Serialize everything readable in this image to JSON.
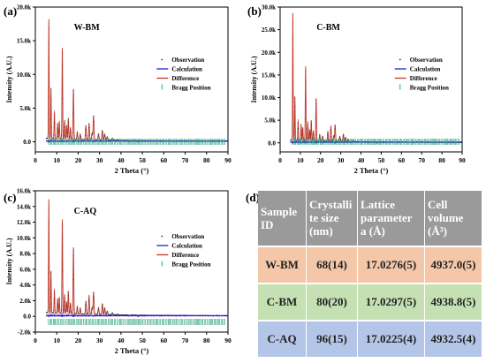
{
  "panels": [
    {
      "letter": "(a)"
    },
    {
      "letter": "(b)"
    },
    {
      "letter": "(c)"
    },
    {
      "letter": "(d)"
    }
  ],
  "colors": {
    "observation": "#333333",
    "calculation": "#1f1fd8",
    "difference": "#c0392b",
    "bragg": "#2aa37a",
    "peak_fill": "#f7c9c9",
    "table_header": "#9a9a9a",
    "row_wbm": "#f4c7a8",
    "row_cbm": "#c5e0b3",
    "row_caq": "#b4c6e7"
  },
  "chart_data": [
    {
      "type": "line",
      "title": "W-BM",
      "xlabel": "2 Theta (°)",
      "ylabel": "Intensity (A.U.)",
      "xlim": [
        0,
        90
      ],
      "ylim": [
        -1500,
        20000
      ],
      "x_ticks": [
        "0",
        "10",
        "20",
        "30",
        "40",
        "50",
        "60",
        "70",
        "80",
        "90"
      ],
      "y_ticks": [
        "0.0",
        "5.0k",
        "10.0k",
        "15.0k",
        "20.0k"
      ],
      "legend": [
        "Observation",
        "Calculation",
        "Difference",
        "Bragg Position"
      ],
      "legend_position": "right",
      "peaks": [
        [
          6.3,
          18200
        ],
        [
          7.3,
          8000
        ],
        [
          8.9,
          4500
        ],
        [
          10.4,
          2800
        ],
        [
          11.2,
          3100
        ],
        [
          12.6,
          14000
        ],
        [
          13.7,
          3200
        ],
        [
          14.6,
          2500
        ],
        [
          15.4,
          3600
        ],
        [
          16.4,
          2200
        ],
        [
          17.8,
          8000
        ],
        [
          19.6,
          1600
        ],
        [
          21.0,
          1300
        ],
        [
          23.6,
          2600
        ],
        [
          25.1,
          2900
        ],
        [
          26.5,
          1500
        ],
        [
          27.2,
          4100
        ],
        [
          29.5,
          1400
        ],
        [
          31.3,
          1900
        ],
        [
          32.4,
          1400
        ],
        [
          33.6,
          1000
        ],
        [
          36.0,
          800
        ],
        [
          38.5,
          600
        ],
        [
          41.0,
          500
        ],
        [
          44.0,
          350
        ],
        [
          48.0,
          300
        ]
      ],
      "background": 500
    },
    {
      "type": "line",
      "title": "C-BM",
      "xlabel": "2 Theta (°)",
      "ylabel": "Intensity (A.U.)",
      "xlim": [
        0,
        90
      ],
      "ylim": [
        -2000,
        30000
      ],
      "x_ticks": [
        "0",
        "10",
        "20",
        "30",
        "40",
        "50",
        "60",
        "70",
        "80",
        "90"
      ],
      "y_ticks": [
        "0.0",
        "5.0k",
        "10.0k",
        "15.0k",
        "20.0k",
        "25.0k",
        "30.0k"
      ],
      "legend": [
        "Observation",
        "Calculation",
        "Difference",
        "Bragg Position"
      ],
      "legend_position": "right",
      "peaks": [
        [
          6.3,
          28700
        ],
        [
          7.3,
          10300
        ],
        [
          8.9,
          5000
        ],
        [
          10.4,
          4200
        ],
        [
          11.2,
          3500
        ],
        [
          12.6,
          17000
        ],
        [
          13.7,
          4700
        ],
        [
          14.6,
          3000
        ],
        [
          15.4,
          5100
        ],
        [
          16.4,
          2800
        ],
        [
          17.8,
          10000
        ],
        [
          19.6,
          2000
        ],
        [
          21.0,
          1700
        ],
        [
          23.6,
          2700
        ],
        [
          25.1,
          3900
        ],
        [
          26.5,
          1800
        ],
        [
          27.2,
          4300
        ],
        [
          29.5,
          1700
        ],
        [
          31.3,
          2200
        ],
        [
          32.4,
          1500
        ],
        [
          33.6,
          1100
        ],
        [
          36.0,
          900
        ],
        [
          38.5,
          700
        ],
        [
          41.0,
          600
        ],
        [
          44.0,
          400
        ],
        [
          48.0,
          350
        ]
      ],
      "background": 600
    },
    {
      "type": "line",
      "title": "C-AQ",
      "xlabel": "2 Theta (°)",
      "ylabel": "Intensity (A.U.)",
      "xlim": [
        0,
        90
      ],
      "ylim": [
        -2000,
        16000
      ],
      "x_ticks": [
        "0",
        "10",
        "20",
        "30",
        "40",
        "50",
        "60",
        "70",
        "80",
        "90"
      ],
      "y_ticks": [
        "-2.0k",
        "0.0",
        "2.0k",
        "4.0k",
        "6.0k",
        "8.0k",
        "10.0k",
        "12.0k",
        "14.0k",
        "16.0k"
      ],
      "legend": [
        "Observation",
        "Calculation",
        "Difference",
        "Bragg Position"
      ],
      "legend_position": "right",
      "peaks": [
        [
          6.3,
          14900
        ],
        [
          7.3,
          5800
        ],
        [
          8.9,
          3400
        ],
        [
          10.4,
          2300
        ],
        [
          11.2,
          2500
        ],
        [
          12.6,
          12400
        ],
        [
          13.7,
          2800
        ],
        [
          14.6,
          1900
        ],
        [
          15.4,
          3300
        ],
        [
          16.4,
          1800
        ],
        [
          17.8,
          8900
        ],
        [
          19.6,
          1400
        ],
        [
          21.0,
          1200
        ],
        [
          23.6,
          2100
        ],
        [
          25.1,
          2800
        ],
        [
          26.5,
          1300
        ],
        [
          27.2,
          3300
        ],
        [
          29.5,
          1300
        ],
        [
          31.3,
          1800
        ],
        [
          32.4,
          1300
        ],
        [
          33.6,
          900
        ],
        [
          36.0,
          700
        ],
        [
          38.5,
          550
        ],
        [
          41.0,
          450
        ],
        [
          44.0,
          320
        ],
        [
          48.0,
          260
        ]
      ],
      "background": 450
    },
    {
      "type": "table",
      "columns": [
        "Sample ID",
        "Crystallite size (nm)",
        "Lattice parameter a (Å)",
        "Cell volume (Å³)"
      ],
      "header_display": [
        "Sample\nID",
        "Crystalli\nte size\n(nm)",
        "Lattice\nparameter\na (Å)",
        "Cell\nvolume\n(Å³)"
      ],
      "rows": [
        [
          "W-BM",
          "68(14)",
          "17.0276(5)",
          "4937.0(5)"
        ],
        [
          "C-BM",
          "80(20)",
          "17.0297(5)",
          "4938.8(5)"
        ],
        [
          "C-AQ",
          "96(15)",
          "17.0225(4)",
          "4932.5(4)"
        ]
      ]
    }
  ]
}
